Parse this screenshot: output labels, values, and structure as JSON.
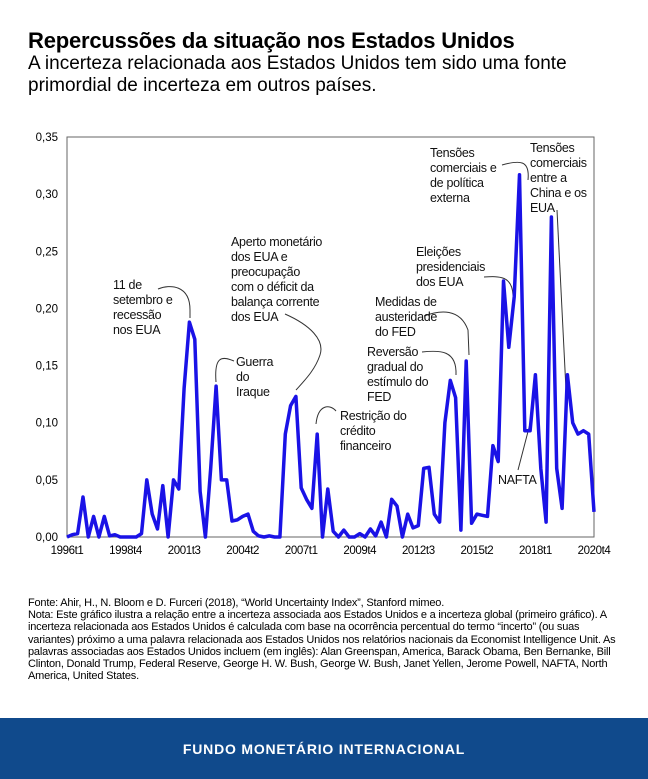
{
  "header": {
    "title": "Repercussões da situação nos Estados Unidos",
    "subtitle": "A incerteza relacionada aos Estados Unidos tem sido uma fonte primordial de incerteza em outros países."
  },
  "chart_data": {
    "type": "line",
    "title": "",
    "xlabel": "",
    "ylabel": "",
    "ylim": [
      0,
      0.35
    ],
    "y_ticks": [
      "0,00",
      "0,05",
      "0,10",
      "0,15",
      "0,20",
      "0,25",
      "0,30",
      "0,35"
    ],
    "x_ticks": [
      "1996t1",
      "1998t4",
      "2001t3",
      "2004t2",
      "2007t1",
      "2009t4",
      "2012t3",
      "2015t2",
      "2018t1",
      "2020t4"
    ],
    "x_range": [
      "1996t1",
      "2020t4"
    ],
    "frequency": "quarterly",
    "grid": false,
    "line_color": "#1a12e6",
    "values": [
      0,
      0.002,
      0.003,
      0.035,
      0,
      0.018,
      0,
      0.018,
      0.001,
      0.002,
      0,
      0,
      0,
      0,
      0.003,
      0.05,
      0.02,
      0.007,
      0.045,
      0,
      0.05,
      0.042,
      0.13,
      0.188,
      0.173,
      0.04,
      0,
      0.06,
      0.132,
      0.05,
      0.05,
      0.014,
      0.015,
      0.018,
      0.02,
      0.005,
      0.001,
      0,
      0.001,
      0,
      0,
      0.09,
      0.115,
      0.123,
      0.043,
      0.033,
      0.025,
      0.09,
      0,
      0.042,
      0.005,
      0,
      0.006,
      0,
      0,
      0.003,
      0,
      0.007,
      0.001,
      0.013,
      0,
      0.033,
      0.027,
      0,
      0.02,
      0.008,
      0.01,
      0.06,
      0.061,
      0.02,
      0.013,
      0.1,
      0.137,
      0.122,
      0.006,
      0.154,
      0.012,
      0.02,
      0.019,
      0.018,
      0.08,
      0.066,
      0.224,
      0.166,
      0.21,
      0.317,
      0.093,
      0.093,
      0.142,
      0.06,
      0.013,
      0.28,
      0.06,
      0.025,
      0.142,
      0.1,
      0.09,
      0.093,
      0.09,
      0.022
    ],
    "annotations": [
      {
        "lines": [
          "11 de",
          "setembro e",
          "recessão",
          "nos EUA"
        ]
      },
      {
        "lines": [
          "Guerra",
          "do",
          "Iraque"
        ]
      },
      {
        "lines": [
          "Aperto monetário",
          "dos EUA e",
          "preocupação",
          "com o déficit da",
          "balança corrente",
          "dos EUA"
        ]
      },
      {
        "lines": [
          "Restrição do",
          "crédito",
          "financeiro"
        ]
      },
      {
        "lines": [
          "Reversão",
          "gradual do",
          "estímulo do",
          "FED"
        ]
      },
      {
        "lines": [
          "Medidas de",
          "austeridade",
          "do FED"
        ]
      },
      {
        "lines": [
          "Eleições",
          "presidenciais",
          "dos EUA"
        ]
      },
      {
        "lines": [
          "Tensões",
          "comerciais e",
          "de política",
          "externa"
        ]
      },
      {
        "lines": [
          "Tensões",
          "comerciais",
          "entre a",
          "China e os",
          "EUA"
        ]
      },
      {
        "lines": [
          "NAFTA"
        ]
      }
    ]
  },
  "notes": {
    "source": "Fonte: Ahir, H., N. Bloom e D. Furceri (2018), “World Uncertainty Index”, Stanford mimeo.",
    "note": "Nota: Este gráfico ilustra a relação entre a incerteza associada aos Estados Unidos e a incerteza global (primeiro gráfico). A incerteza relacionada aos Estados Unidos é calculada com base na ocorrência percentual do termo “incerto” (ou suas variantes) próximo a uma palavra relacionada aos Estados Unidos nos relatórios nacionais da Economist Intelligence Unit. As palavras associadas aos Estados Unidos incluem (em inglês): Alan Greenspan, America, Barack Obama, Ben Bernanke, Bill Clinton, Donald Trump, Federal Reserve, George H. W. Bush, George W. Bush, Janet Yellen, Jerome Powell, NAFTA, North America, United States."
  },
  "footer": {
    "org": "FUNDO MONETÁRIO INTERNACIONAL",
    "color": "#104a8c"
  }
}
